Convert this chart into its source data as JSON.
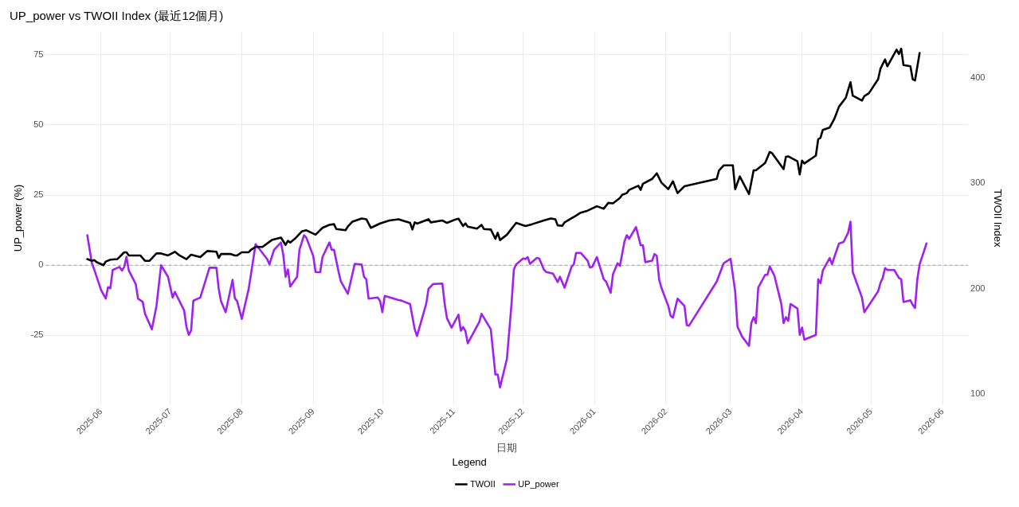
{
  "chart_data": {
    "type": "line",
    "title": "UP_power vs TWOII Index (最近12個月)",
    "xlabel": "日期",
    "ylabel": "UP_power (%)",
    "y2label": "TWOII Index",
    "legend_title": "Legend",
    "legend": "bottom",
    "grid": true,
    "xlim": [
      "2025-05-08",
      "2026-06-12"
    ],
    "xticks": [
      "2025-06",
      "2025-07",
      "2025-08",
      "2025-09",
      "2025-10",
      "2025-11",
      "2025-12",
      "2026-01",
      "2026-02",
      "2026-03",
      "2026-04",
      "2026-05",
      "2026-06"
    ],
    "ylim": [
      -49.5,
      83.1
    ],
    "yticks": [
      -25,
      0,
      25,
      50,
      75
    ],
    "y2lim": [
      90.2,
      443.8
    ],
    "y2ticks": [
      100,
      200,
      300,
      400
    ],
    "ref_lines": [
      {
        "axis": "y",
        "value": 0,
        "color": "#9e9e9e",
        "line_style": "dashed"
      }
    ],
    "series": [
      {
        "name": "TWOII",
        "color": "#000000",
        "axis": "y2",
        "x": [
          "2025-05-26",
          "2025-05-28",
          "2025-05-29",
          "2025-05-30",
          "2025-06-02",
          "2025-06-03",
          "2025-06-05",
          "2025-06-08",
          "2025-06-11",
          "2025-06-12",
          "2025-06-13",
          "2025-06-18",
          "2025-06-20",
          "2025-06-22",
          "2025-06-25",
          "2025-06-27",
          "2025-06-30",
          "2025-07-03",
          "2025-07-05",
          "2025-07-08",
          "2025-07-10",
          "2025-07-12",
          "2025-07-14",
          "2025-07-17",
          "2025-07-21",
          "2025-07-22",
          "2025-07-23",
          "2025-07-27",
          "2025-07-29",
          "2025-07-30",
          "2025-08-01",
          "2025-08-04",
          "2025-08-05",
          "2025-08-07",
          "2025-08-10",
          "2025-08-14",
          "2025-08-18",
          "2025-08-20",
          "2025-08-21",
          "2025-08-22",
          "2025-08-24",
          "2025-08-27",
          "2025-08-29",
          "2025-09-02",
          "2025-09-05",
          "2025-09-08",
          "2025-09-10",
          "2025-09-11",
          "2025-09-15",
          "2025-09-16",
          "2025-09-18",
          "2025-09-22",
          "2025-09-24",
          "2025-09-26",
          "2025-09-30",
          "2025-10-04",
          "2025-10-08",
          "2025-10-13",
          "2025-10-14",
          "2025-10-15",
          "2025-10-16",
          "2025-10-21",
          "2025-10-22",
          "2025-10-27",
          "2025-10-29",
          "2025-11-02",
          "2025-11-03",
          "2025-11-05",
          "2025-11-06",
          "2025-11-07",
          "2025-11-11",
          "2025-11-13",
          "2025-11-14",
          "2025-11-17",
          "2025-11-19",
          "2025-11-20",
          "2025-11-21",
          "2025-11-24",
          "2025-11-28",
          "2025-12-01",
          "2025-12-02",
          "2025-12-05",
          "2025-12-10",
          "2025-12-13",
          "2025-12-15",
          "2025-12-16",
          "2025-12-18",
          "2025-12-19",
          "2025-12-24",
          "2025-12-26",
          "2025-12-29",
          "2026-01-02",
          "2026-01-05",
          "2026-01-07",
          "2026-01-09",
          "2026-01-12",
          "2026-01-13",
          "2026-01-15",
          "2026-01-16",
          "2026-01-20",
          "2026-01-21",
          "2026-01-22",
          "2026-01-26",
          "2026-01-28",
          "2026-01-30",
          "2026-02-02",
          "2026-02-04",
          "2026-02-06",
          "2026-02-09",
          "2026-02-23",
          "2026-02-24",
          "2026-02-26",
          "2026-03-02",
          "2026-03-03",
          "2026-03-05",
          "2026-03-09",
          "2026-03-11",
          "2026-03-12",
          "2026-03-16",
          "2026-03-18",
          "2026-03-19",
          "2026-03-24",
          "2026-03-25",
          "2026-03-26",
          "2026-03-30",
          "2026-03-31",
          "2026-04-01",
          "2026-04-02",
          "2026-04-07",
          "2026-04-08",
          "2026-04-09",
          "2026-04-10",
          "2026-04-13",
          "2026-04-15",
          "2026-04-17",
          "2026-04-20",
          "2026-04-22",
          "2026-04-23",
          "2026-04-27",
          "2026-04-28",
          "2026-04-30",
          "2026-05-04",
          "2026-05-05",
          "2026-05-07",
          "2026-05-08",
          "2026-05-12",
          "2026-05-13",
          "2026-05-14",
          "2026-05-15",
          "2026-05-18",
          "2026-05-19",
          "2026-05-20",
          "2026-05-22"
        ],
        "values": [
          228.0,
          226.4,
          227.1,
          225.2,
          222.2,
          225.7,
          227.5,
          228.0,
          234.5,
          234.5,
          231.5,
          231.5,
          226.4,
          226.4,
          233.4,
          233.4,
          231.5,
          235.0,
          231.5,
          228.0,
          232.2,
          231.0,
          229.9,
          235.7,
          235.0,
          229.2,
          232.9,
          232.9,
          231.5,
          231.5,
          234.5,
          234.5,
          236.8,
          239.6,
          239.6,
          246.1,
          248.5,
          241.5,
          245.4,
          243.8,
          247.3,
          254.3,
          255.4,
          251.2,
          257.7,
          260.5,
          261.2,
          256.6,
          255.4,
          258.9,
          263.6,
          266.6,
          265.9,
          257.7,
          261.9,
          264.7,
          265.9,
          262.4,
          256.1,
          262.9,
          261.7,
          265.9,
          262.9,
          264.7,
          262.4,
          265.9,
          266.4,
          259.4,
          261.9,
          258.9,
          257.0,
          260.5,
          256.6,
          256.1,
          247.3,
          253.1,
          246.1,
          251.2,
          262.4,
          260.1,
          259.4,
          261.2,
          264.7,
          266.6,
          265.9,
          260.1,
          259.6,
          262.9,
          269.4,
          272.1,
          274.0,
          278.2,
          275.9,
          281.4,
          281.0,
          286.1,
          289.1,
          290.7,
          293.7,
          297.7,
          293.7,
          299.6,
          304.2,
          309.5,
          300.7,
          294.4,
          301.9,
          290.7,
          297.2,
          304.2,
          312.3,
          317.0,
          317.0,
          294.4,
          306.5,
          289.8,
          312.3,
          312.3,
          319.3,
          329.8,
          328.6,
          313.5,
          325.1,
          325.6,
          320.9,
          308.4,
          321.6,
          318.8,
          326.3,
          341.8,
          343.2,
          350.7,
          353.0,
          361.1,
          372.7,
          381.3,
          396.0,
          383.2,
          378.5,
          382.7,
          385.5,
          398.8,
          408.7,
          417.6,
          411.1,
          426.9,
          422.7,
          427.8,
          412.2,
          411.1,
          398.8,
          397.6,
          423.8
        ]
      },
      {
        "name": "UP_power",
        "color": "#a020f0",
        "x": [
          "2025-05-26",
          "2025-05-28",
          "2025-05-29",
          "2025-06-01",
          "2025-06-03",
          "2025-06-04",
          "2025-06-05",
          "2025-06-06",
          "2025-06-09",
          "2025-06-10",
          "2025-06-11",
          "2025-06-12",
          "2025-06-13",
          "2025-06-16",
          "2025-06-17",
          "2025-06-19",
          "2025-06-20",
          "2025-06-23",
          "2025-06-25",
          "2025-06-27",
          "2025-06-30",
          "2025-07-02",
          "2025-07-03",
          "2025-07-07",
          "2025-07-08",
          "2025-07-09",
          "2025-07-10",
          "2025-07-11",
          "2025-07-14",
          "2025-07-18",
          "2025-07-21",
          "2025-07-22",
          "2025-07-23",
          "2025-07-25",
          "2025-07-28",
          "2025-07-29",
          "2025-07-30",
          "2025-08-01",
          "2025-08-04",
          "2025-08-07",
          "2025-08-12",
          "2025-08-13",
          "2025-08-15",
          "2025-08-18",
          "2025-08-19",
          "2025-08-20",
          "2025-08-21",
          "2025-08-22",
          "2025-08-25",
          "2025-08-26",
          "2025-08-28",
          "2025-08-29",
          "2025-09-01",
          "2025-09-02",
          "2025-09-04",
          "2025-09-05",
          "2025-09-08",
          "2025-09-09",
          "2025-09-10",
          "2025-09-12",
          "2025-09-13",
          "2025-09-16",
          "2025-09-19",
          "2025-09-22",
          "2025-09-23",
          "2025-09-24",
          "2025-09-25",
          "2025-09-29",
          "2025-09-30",
          "2025-10-01",
          "2025-10-02",
          "2025-10-06",
          "2025-10-08",
          "2025-10-09",
          "2025-10-13",
          "2025-10-15",
          "2025-10-16",
          "2025-10-20",
          "2025-10-21",
          "2025-10-23",
          "2025-10-27",
          "2025-10-28",
          "2025-10-29",
          "2025-10-31",
          "2025-11-03",
          "2025-11-04",
          "2025-11-05",
          "2025-11-06",
          "2025-11-07",
          "2025-11-12",
          "2025-11-13",
          "2025-11-17",
          "2025-11-19",
          "2025-11-20",
          "2025-11-21",
          "2025-11-24",
          "2025-11-26",
          "2025-11-27",
          "2025-11-28",
          "2025-12-01",
          "2025-12-02",
          "2025-12-03",
          "2025-12-04",
          "2025-12-07",
          "2025-12-08",
          "2025-12-10",
          "2025-12-11",
          "2025-12-14",
          "2025-12-16",
          "2025-12-17",
          "2025-12-18",
          "2025-12-19",
          "2025-12-22",
          "2025-12-23",
          "2025-12-24",
          "2025-12-26",
          "2025-12-29",
          "2025-12-30",
          "2025-12-31",
          "2026-01-02",
          "2026-01-05",
          "2026-01-06",
          "2026-01-08",
          "2026-01-09",
          "2026-01-11",
          "2026-01-12",
          "2026-01-14",
          "2026-01-15",
          "2026-01-16",
          "2026-01-19",
          "2026-01-21",
          "2026-01-22",
          "2026-01-23",
          "2026-01-26",
          "2026-01-27",
          "2026-01-28",
          "2026-01-29",
          "2026-01-30",
          "2026-01-31",
          "2026-02-02",
          "2026-02-03",
          "2026-02-04",
          "2026-02-06",
          "2026-02-09",
          "2026-02-10",
          "2026-02-11",
          "2026-02-23",
          "2026-02-26",
          "2026-03-01",
          "2026-03-03",
          "2026-03-04",
          "2026-03-06",
          "2026-03-09",
          "2026-03-10",
          "2026-03-11",
          "2026-03-12",
          "2026-03-13",
          "2026-03-16",
          "2026-03-17",
          "2026-03-18",
          "2026-03-20",
          "2026-03-23",
          "2026-03-24",
          "2026-03-25",
          "2026-03-26",
          "2026-03-27",
          "2026-03-30",
          "2026-03-31",
          "2026-04-01",
          "2026-04-02",
          "2026-04-07",
          "2026-04-08",
          "2026-04-09",
          "2026-04-10",
          "2026-04-13",
          "2026-04-14",
          "2026-04-15",
          "2026-04-17",
          "2026-04-19",
          "2026-04-21",
          "2026-04-22",
          "2026-04-23",
          "2026-04-27",
          "2026-04-28",
          "2026-05-04",
          "2026-05-05",
          "2026-05-06",
          "2026-05-07",
          "2026-05-08",
          "2026-05-11",
          "2026-05-13",
          "2026-05-14",
          "2026-05-15",
          "2026-05-18",
          "2026-05-19",
          "2026-05-20",
          "2026-05-21",
          "2026-05-22",
          "2026-05-25"
        ],
        "values": [
          10.7,
          0.7,
          -1.5,
          -8.9,
          -11.9,
          -7.8,
          -8.2,
          -1.7,
          -0.6,
          -1.9,
          -0.6,
          3.0,
          -1.9,
          -6.7,
          -11.9,
          -13.0,
          -17.2,
          -22.8,
          -14.5,
          0,
          -4.1,
          -11.5,
          -9.5,
          -16.1,
          -21.9,
          -24.8,
          -23.3,
          -12.6,
          -11.5,
          -0.9,
          -0.9,
          -8.4,
          -12.8,
          -16.7,
          -5.2,
          -11.8,
          -12.8,
          -19.1,
          -8.4,
          7.5,
          2.2,
          0.3,
          5.5,
          8.1,
          3.7,
          -4.1,
          -1.5,
          -7.6,
          -4.1,
          5.5,
          10.7,
          9.8,
          3.3,
          -2.4,
          -2.5,
          2.9,
          8.1,
          5.5,
          5.5,
          -2.4,
          -5.8,
          -10.2,
          0.5,
          0.3,
          -4.1,
          -5.0,
          -11.9,
          -11.5,
          -12.8,
          -16.7,
          -10.9,
          -11.9,
          -12.4,
          -12.5,
          -13.8,
          -22.8,
          -25.2,
          -13.7,
          -8.4,
          -6.7,
          -6.5,
          -13.7,
          -18.9,
          -22.2,
          -17.6,
          -23.3,
          -22.0,
          -23.4,
          -27.8,
          -20.2,
          -17.3,
          -22.8,
          -38.9,
          -38.9,
          -43.5,
          -33.3,
          -13.7,
          -1.5,
          0.3,
          2.4,
          2.2,
          2.9,
          0.5,
          2.6,
          2.4,
          -1.5,
          -2.4,
          -3.0,
          -6.0,
          -4.1,
          -6.0,
          -8.0,
          -0.6,
          0.3,
          4.4,
          4.4,
          1.6,
          -0.8,
          -0.6,
          2.9,
          -5.0,
          -5.8,
          -9.8,
          -3.2,
          0.7,
          -0.2,
          8.5,
          10.7,
          9.4,
          13.6,
          7.1,
          7.1,
          1.1,
          1.6,
          4.0,
          3.3,
          -5.0,
          -8.0,
          -10.2,
          -14.5,
          -18.0,
          -18.7,
          -11.9,
          -14.5,
          -21.3,
          -21.5,
          -5.8,
          0.7,
          2.3,
          -9.3,
          -21.9,
          -25.4,
          -28.7,
          -20.6,
          -18.5,
          -20.6,
          -8.0,
          -3.4,
          -3.4,
          -0.4,
          -3.7,
          -13.7,
          -20.6,
          -18.5,
          -19.8,
          -13.8,
          -15.4,
          -24.8,
          -22.2,
          -26.5,
          -24.8,
          -5.0,
          -6.4,
          -1.9,
          2.6,
          0.3,
          2.9,
          7.7,
          8.3,
          11.6,
          15.5,
          -2.4,
          -11.5,
          -16.7,
          -9.3,
          -6.3,
          -4.5,
          -1.0,
          -1.7,
          -1.7,
          -4.5,
          -5.0,
          -13.1,
          -12.5,
          -14.1,
          -15.2,
          -5.0,
          0.3,
          7.8
        ]
      }
    ]
  }
}
